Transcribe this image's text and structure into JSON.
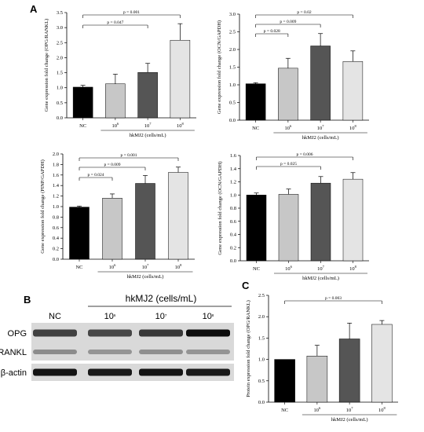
{
  "panel_labels": {
    "a": "A",
    "b": "B",
    "c": "C"
  },
  "chart_data": [
    {
      "type": "bar",
      "categories": [
        "NC",
        "10^6",
        "10^7",
        "10^8"
      ],
      "values": [
        1.02,
        1.13,
        1.51,
        2.58
      ],
      "errors": [
        0.06,
        0.32,
        0.3,
        0.55
      ],
      "ylabel": "Gene expression fold change (OPG/RANKL)",
      "xgroup_label": "hkMJ2 (cells/mL)",
      "ylim": [
        0,
        3.5
      ],
      "yticks": [
        "0.0",
        "0.5",
        "1.0",
        "1.5",
        "2.0",
        "2.5",
        "3.0",
        "3.5"
      ],
      "colors": [
        "#000000",
        "#c7c7c7",
        "#555555",
        "#e4e4e4"
      ],
      "brackets": [
        {
          "from": 0,
          "to": 3,
          "label": "p = 0.001"
        },
        {
          "from": 0,
          "to": 2,
          "label": "p = 0.047"
        }
      ]
    },
    {
      "type": "bar",
      "categories": [
        "NC",
        "10^6",
        "10^7",
        "10^8"
      ],
      "values": [
        1.03,
        1.47,
        2.1,
        1.66
      ],
      "errors": [
        0.03,
        0.28,
        0.35,
        0.3
      ],
      "ylabel": "Gene expression fold change (OCN/GAPDH)",
      "xgroup_label": "hkMJ2 (cells/mL)",
      "ylim": [
        0,
        3.0
      ],
      "yticks": [
        "0.0",
        "0.5",
        "1.0",
        "1.5",
        "2.0",
        "2.5",
        "3.0"
      ],
      "colors": [
        "#000000",
        "#c7c7c7",
        "#555555",
        "#e4e4e4"
      ],
      "brackets": [
        {
          "from": 0,
          "to": 3,
          "label": "p = 0.02"
        },
        {
          "from": 0,
          "to": 2,
          "label": "p = 0.009"
        },
        {
          "from": 0,
          "to": 1,
          "label": "p = 0.028"
        }
      ]
    },
    {
      "type": "bar",
      "categories": [
        "NC",
        "10^6",
        "10^7",
        "10^8"
      ],
      "values": [
        0.99,
        1.16,
        1.44,
        1.65
      ],
      "errors": [
        0.02,
        0.08,
        0.15,
        0.1
      ],
      "ylabel": "Gene expression fold change (PINP/GAPDH)",
      "xgroup_label": "hkMJ2 (cells/mL)",
      "ylim": [
        0,
        2.0
      ],
      "yticks": [
        "0.0",
        "0.2",
        "0.4",
        "0.6",
        "0.8",
        "1.0",
        "1.2",
        "1.4",
        "1.6",
        "1.8",
        "2.0"
      ],
      "colors": [
        "#000000",
        "#c7c7c7",
        "#555555",
        "#e4e4e4"
      ],
      "brackets": [
        {
          "from": 0,
          "to": 3,
          "label": "p = 0.001"
        },
        {
          "from": 0,
          "to": 2,
          "label": "p = 0.009"
        },
        {
          "from": 0,
          "to": 1,
          "label": "p = 0.024"
        }
      ]
    },
    {
      "type": "bar",
      "categories": [
        "NC",
        "10^6",
        "10^7",
        "10^8"
      ],
      "values": [
        1.0,
        1.01,
        1.18,
        1.24
      ],
      "errors": [
        0.03,
        0.08,
        0.1,
        0.1
      ],
      "ylabel": "Gene expression fold change (OCN/GAPDH)",
      "xgroup_label": "hkMJ2 (cells/mL)",
      "ylim": [
        0,
        1.6
      ],
      "yticks": [
        "0.0",
        "0.2",
        "0.4",
        "0.6",
        "0.8",
        "1.0",
        "1.2",
        "1.4",
        "1.6"
      ],
      "colors": [
        "#000000",
        "#c7c7c7",
        "#555555",
        "#e4e4e4"
      ],
      "brackets": [
        {
          "from": 0,
          "to": 3,
          "label": "p = 0.006"
        },
        {
          "from": 0,
          "to": 2,
          "label": "p = 0.025"
        }
      ]
    },
    {
      "type": "bar",
      "categories": [
        "NC",
        "10^6",
        "10^7",
        "10^8"
      ],
      "values": [
        1.0,
        1.08,
        1.48,
        1.82
      ],
      "errors": [
        0.0,
        0.25,
        0.37,
        0.09
      ],
      "ylabel": "Protein expression fold change (OPG/RANKL)",
      "xgroup_label": "hkMJ2 (cells/mL)",
      "ylim": [
        0,
        2.5
      ],
      "yticks": [
        "0.0",
        "0.5",
        "1.0",
        "1.5",
        "2.0",
        "2.5"
      ],
      "colors": [
        "#000000",
        "#c7c7c7",
        "#555555",
        "#e4e4e4"
      ],
      "brackets": [
        {
          "from": 0,
          "to": 3,
          "label": "p = 0.003"
        }
      ]
    }
  ],
  "western_blot": {
    "group_title": "hkMJ2 (cells/mL)",
    "lane_labels": [
      "NC",
      "10^6",
      "10^7",
      "10^8"
    ],
    "rows": [
      {
        "label": "OPG",
        "intensities": [
          0.75,
          0.72,
          0.78,
          0.95
        ]
      },
      {
        "label": "RANKL",
        "intensities": [
          0.45,
          0.42,
          0.44,
          0.42
        ]
      },
      {
        "label": "β-actin",
        "intensities": [
          0.92,
          0.9,
          0.92,
          0.9
        ]
      }
    ]
  }
}
